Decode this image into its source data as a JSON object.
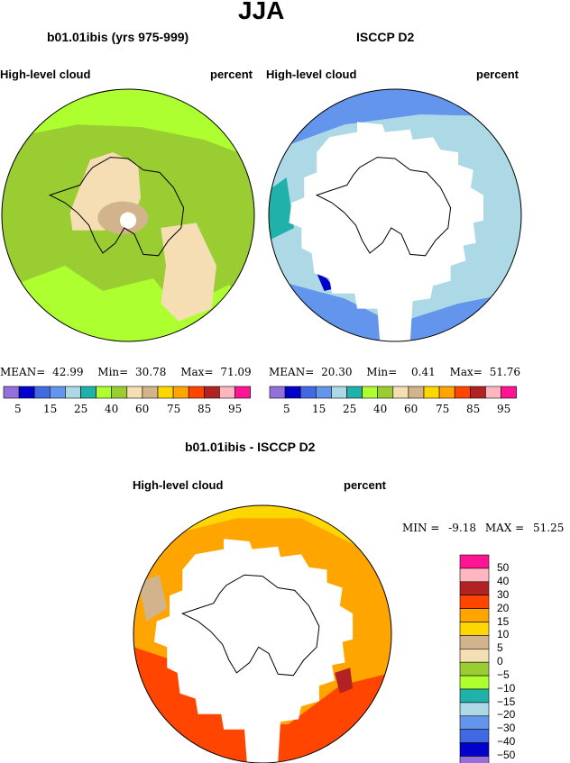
{
  "season_title": "JJA",
  "panels": {
    "model": {
      "title": "b01.01ibis (yrs 975-999)",
      "variable": "High-level cloud",
      "units": "percent",
      "stats": {
        "mean_label": "MEAN=",
        "mean": "42.99",
        "min_label": "Min=",
        "min": "30.78",
        "max_label": "Max=",
        "max": "71.09"
      }
    },
    "obs": {
      "title": "ISCCP D2",
      "variable": "High-level cloud",
      "units": "percent",
      "stats": {
        "mean_label": "MEAN=",
        "mean": "20.30",
        "min_label": "Min=",
        "min": "0.41",
        "max_label": "Max=",
        "max": "51.76"
      }
    },
    "diff": {
      "title": "b01.01ibis - ISCCP D2",
      "variable": "High-level cloud",
      "units": "percent",
      "stats": {
        "min_label": "MIN =",
        "min": "-9.18",
        "max_label": "MAX =",
        "max": "51.25"
      }
    }
  },
  "colorbar_horizontal": {
    "labels": [
      "5",
      "15",
      "25",
      "40",
      "60",
      "75",
      "85",
      "95"
    ],
    "colors": [
      "#9370db",
      "#0000cd",
      "#4169e1",
      "#6495ed",
      "#add8e6",
      "#20b2aa",
      "#adff2f",
      "#9acd32",
      "#f5deb3",
      "#d2b48c",
      "#ffd700",
      "#ffa500",
      "#ff4500",
      "#b22222",
      "#ffb6c1",
      "#ff1493"
    ]
  },
  "colorbar_vertical": {
    "labels": [
      "50",
      "40",
      "30",
      "20",
      "15",
      "10",
      "5",
      "0",
      "−5",
      "−10",
      "−15",
      "−20",
      "−30",
      "−40",
      "−50"
    ],
    "colors_top_to_bottom": [
      "#ff1493",
      "#ffb6c1",
      "#b22222",
      "#ff4500",
      "#ffa500",
      "#ffd700",
      "#d2b48c",
      "#f5deb3",
      "#9acd32",
      "#adff2f",
      "#20b2aa",
      "#add8e6",
      "#6495ed",
      "#4169e1",
      "#0000cd",
      "#9370db"
    ]
  },
  "map_colors": {
    "model_base": "#9acd32",
    "model_light": "#adff2f",
    "model_wheat": "#f5deb3",
    "model_tan": "#d2b48c",
    "obs_base": "#add8e6",
    "obs_mid": "#6495ed",
    "obs_dark": "#4169e1",
    "obs_navy": "#0000cd",
    "obs_teal": "#20b2aa",
    "diff_outer": "#ff4500",
    "diff_orange": "#ffa500",
    "diff_yellow": "#ffd700",
    "diff_dark": "#b22222",
    "diff_tan": "#d2b48c"
  }
}
